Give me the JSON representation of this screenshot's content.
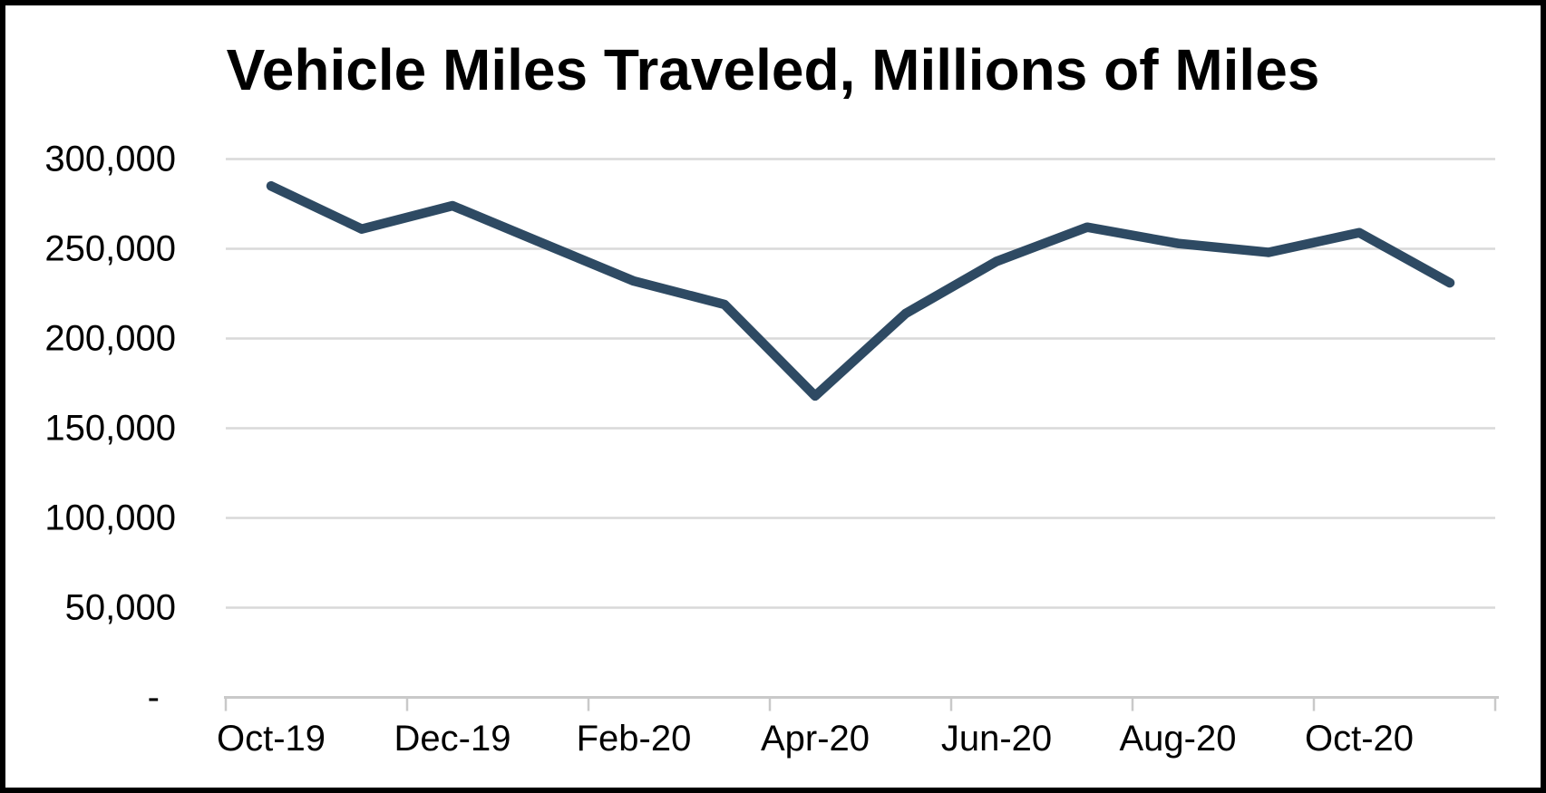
{
  "chart_data": {
    "type": "line",
    "title": "Vehicle Miles Traveled, Millions of Miles",
    "xlabel": "",
    "ylabel": "",
    "categories": [
      "Oct-19",
      "Nov-19",
      "Dec-19",
      "Jan-20",
      "Feb-20",
      "Mar-20",
      "Apr-20",
      "May-20",
      "Jun-20",
      "Jul-20",
      "Aug-20",
      "Sep-20",
      "Oct-20",
      "Nov-20"
    ],
    "values": [
      285000,
      261000,
      274000,
      253000,
      232000,
      219000,
      168000,
      214000,
      243000,
      262000,
      253000,
      248000,
      259000,
      231000
    ],
    "ylim": [
      0,
      300000
    ],
    "y_ticks": {
      "values": [
        300000,
        250000,
        200000,
        150000,
        100000,
        50000,
        0
      ],
      "labels": [
        "300,000",
        "250,000",
        "200,000",
        "150,000",
        "100,000",
        "50,000",
        "-"
      ]
    },
    "x_tick_labels": [
      "Oct-19",
      "Dec-19",
      "Feb-20",
      "Apr-20",
      "Jun-20",
      "Aug-20",
      "Oct-20"
    ],
    "grid": true,
    "legend": "none",
    "colors": {
      "line": "#2E4A63",
      "gridline": "#D9D9D9",
      "axis_line": "#C9C9C9",
      "text": "#000000",
      "background": "#FFFFFF",
      "frame_border": "#000000"
    }
  }
}
